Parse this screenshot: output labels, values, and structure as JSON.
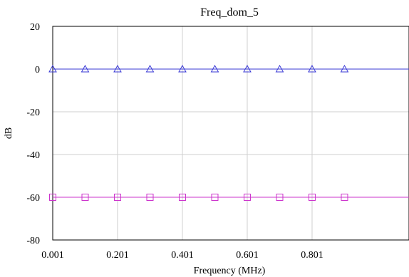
{
  "chart_data": {
    "type": "line",
    "title": "Freq_dom_5",
    "xlabel": "Frequency (MHz)",
    "ylabel": "dB",
    "xlim": [
      0.001,
      1.1
    ],
    "ylim": [
      -80,
      20
    ],
    "x_ticks": [
      0.001,
      0.201,
      0.401,
      0.601,
      0.801
    ],
    "x_tick_labels": [
      "0.001",
      "0.201",
      "0.401",
      "0.601",
      "0.801"
    ],
    "y_ticks": [
      20,
      0,
      -20,
      -40,
      -60,
      -80
    ],
    "y_tick_labels": [
      "20",
      "0",
      "-20",
      "-40",
      "-60",
      "-80"
    ],
    "grid": true,
    "series": [
      {
        "color": "#3a3ad6",
        "marker": "triangle",
        "x": [
          0.001,
          0.101,
          0.201,
          0.301,
          0.401,
          0.501,
          0.601,
          0.701,
          0.801,
          0.901
        ],
        "values": [
          0,
          0,
          0,
          0,
          0,
          0,
          0,
          0,
          0,
          0
        ]
      },
      {
        "color": "#cc33cc",
        "marker": "square",
        "x": [
          0.001,
          0.101,
          0.201,
          0.301,
          0.401,
          0.501,
          0.601,
          0.701,
          0.801,
          0.901
        ],
        "values": [
          -60,
          -60,
          -60,
          -60,
          -60,
          -60,
          -60,
          -60,
          -60,
          -60
        ]
      }
    ]
  }
}
